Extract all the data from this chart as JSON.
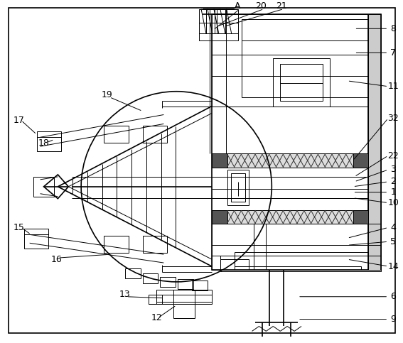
{
  "bg_color": "#ffffff",
  "line_color": "#000000",
  "fig_width": 5.67,
  "fig_height": 4.83,
  "dpi": 100
}
